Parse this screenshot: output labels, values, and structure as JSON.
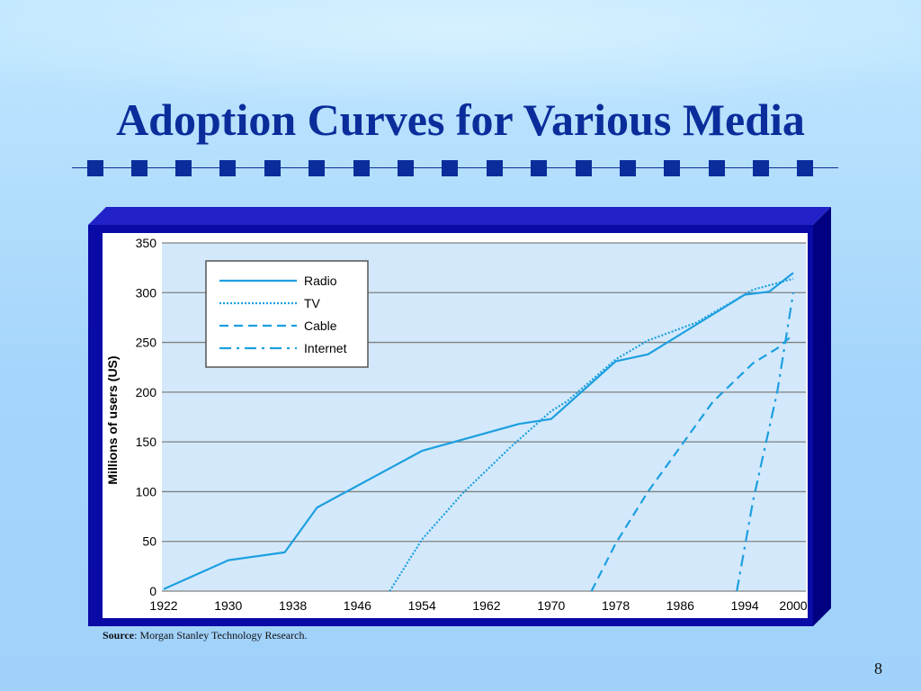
{
  "slide": {
    "title": "Adoption Curves for Various Media",
    "source_label": "Source",
    "source_text": ": Morgan Stanley Technology Research.",
    "page_number": "8"
  },
  "colors": {
    "title": "#0b2d9b",
    "frame": "#0a0aa6",
    "plot_bg": "#d3e9fb",
    "series": "#1d9fe0",
    "grid": "#808080"
  },
  "chart_data": {
    "type": "line",
    "title": "",
    "xlabel": "",
    "ylabel": "Millions of users (US)",
    "xlim": [
      1922,
      2000
    ],
    "ylim": [
      0,
      350
    ],
    "xticks": [
      1922,
      1930,
      1938,
      1946,
      1954,
      1962,
      1970,
      1978,
      1986,
      1994,
      2000
    ],
    "yticks": [
      0,
      50,
      100,
      150,
      200,
      250,
      300,
      350
    ],
    "grid": "horizontal",
    "legend_position": "top-left",
    "series": [
      {
        "name": "Radio",
        "style": "solid",
        "points": [
          [
            1922,
            2
          ],
          [
            1930,
            31
          ],
          [
            1937,
            39
          ],
          [
            1941,
            84
          ],
          [
            1954,
            141
          ],
          [
            1966,
            168
          ],
          [
            1970,
            173
          ],
          [
            1978,
            231
          ],
          [
            1982,
            238
          ],
          [
            1994,
            298
          ],
          [
            1997,
            301
          ],
          [
            2000,
            320
          ]
        ]
      },
      {
        "name": "TV",
        "style": "dotted",
        "points": [
          [
            1950,
            0
          ],
          [
            1954,
            52
          ],
          [
            1959,
            98
          ],
          [
            1965,
            145
          ],
          [
            1970,
            181
          ],
          [
            1972,
            191
          ],
          [
            1978,
            233
          ],
          [
            1982,
            252
          ],
          [
            1988,
            270
          ],
          [
            1995,
            303
          ],
          [
            2000,
            314
          ]
        ]
      },
      {
        "name": "Cable",
        "style": "dashed",
        "points": [
          [
            1975,
            0
          ],
          [
            1978,
            48
          ],
          [
            1982,
            100
          ],
          [
            1990,
            190
          ],
          [
            1995,
            229
          ],
          [
            1998,
            244
          ],
          [
            2000,
            258
          ]
        ]
      },
      {
        "name": "Internet",
        "style": "dashdot",
        "points": [
          [
            1993,
            0
          ],
          [
            1995,
            90
          ],
          [
            1998,
            200
          ],
          [
            2000,
            300
          ]
        ]
      }
    ]
  }
}
